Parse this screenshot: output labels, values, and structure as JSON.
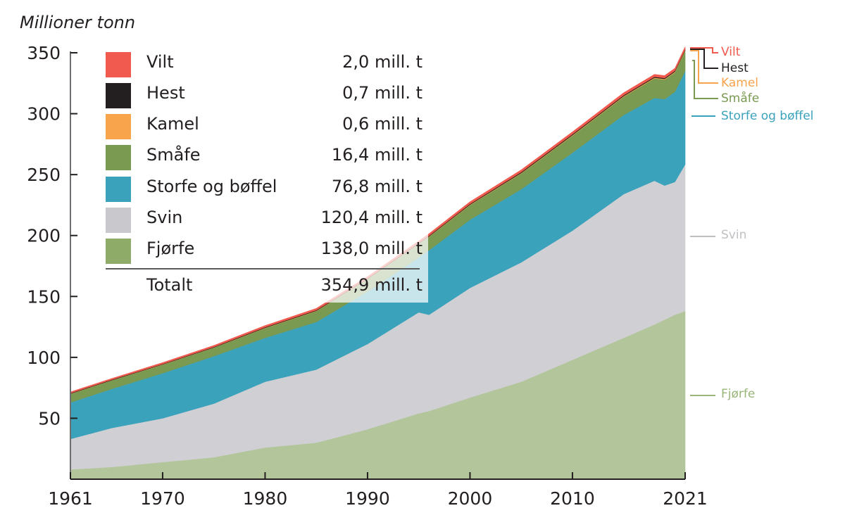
{
  "chart_data": {
    "type": "area",
    "stacked": true,
    "ylabel": "Millioner tonn",
    "xlabel": "",
    "xlim": [
      1961,
      2021
    ],
    "ylim": [
      0,
      350
    ],
    "x_ticks": [
      1961,
      1970,
      1980,
      1990,
      2000,
      2010,
      2021
    ],
    "y_ticks": [
      50,
      100,
      150,
      200,
      250,
      300,
      350
    ],
    "grid": false,
    "legend_position": "top-left",
    "x": [
      1961,
      1965,
      1970,
      1975,
      1980,
      1985,
      1990,
      1995,
      1996,
      2000,
      2005,
      2010,
      2015,
      2018,
      2019,
      2020,
      2021
    ],
    "series": [
      {
        "name": "Fjørfe",
        "color": "#b3c59b",
        "values": [
          8,
          10,
          14,
          18,
          26,
          30,
          41,
          54,
          56,
          67,
          80,
          98,
          116,
          127,
          131,
          135,
          138
        ]
      },
      {
        "name": "Svin",
        "color": "#d0d0d4",
        "values": [
          25,
          32,
          36,
          44,
          54,
          60,
          70,
          83,
          79,
          90,
          98,
          106,
          118,
          118,
          110,
          109,
          120.4
        ]
      },
      {
        "name": "Storfe og bøffel",
        "color": "#3ba2bc",
        "values": [
          30,
          32,
          37,
          39,
          36,
          39,
          43,
          45,
          53,
          56,
          60,
          64,
          65,
          68,
          71,
          74,
          76.8
        ]
      },
      {
        "name": "Småfe",
        "color": "#7a9a52",
        "values": [
          7,
          7,
          7,
          7,
          8,
          9,
          10,
          11,
          11,
          12,
          13,
          14,
          15,
          16,
          16,
          16,
          16.4
        ]
      },
      {
        "name": "Kamel",
        "color": "#f7a44c",
        "values": [
          0.2,
          0.2,
          0.2,
          0.2,
          0.3,
          0.3,
          0.3,
          0.3,
          0.3,
          0.4,
          0.4,
          0.5,
          0.5,
          0.6,
          0.6,
          0.6,
          0.6
        ]
      },
      {
        "name": "Hest",
        "color": "#231f20",
        "values": [
          0.4,
          0.4,
          0.4,
          0.4,
          0.5,
          0.5,
          0.5,
          0.6,
          0.6,
          0.6,
          0.7,
          0.7,
          0.7,
          0.7,
          0.7,
          0.7,
          0.7
        ]
      },
      {
        "name": "Vilt",
        "color": "#f15a4e",
        "values": [
          1.0,
          1.0,
          1.1,
          1.2,
          1.3,
          1.4,
          1.5,
          1.6,
          1.6,
          1.7,
          1.8,
          1.9,
          2.0,
          2.0,
          2.0,
          2.0,
          2.0
        ]
      }
    ],
    "legend": [
      {
        "name": "Vilt",
        "value": "2,0 mill. t",
        "color": "#f15a4e"
      },
      {
        "name": "Hest",
        "value": "0,7 mill. t",
        "color": "#231f20"
      },
      {
        "name": "Kamel",
        "value": "0,6 mill. t",
        "color": "#f7a44c"
      },
      {
        "name": "Småfe",
        "value": "16,4 mill. t",
        "color": "#7a9a52"
      },
      {
        "name": "Storfe og bøffel",
        "value": "76,8 mill. t",
        "color": "#3ba2bc"
      },
      {
        "name": "Svin",
        "value": "120,4 mill. t",
        "color": "#c9c9cd"
      },
      {
        "name": "Fjørfe",
        "value": "138,0 mill. t",
        "color": "#8fab68"
      }
    ],
    "total": {
      "name": "Totalt",
      "value": "354,9 mill. t"
    },
    "end_labels": [
      {
        "name": "Vilt",
        "color": "#f15a4e"
      },
      {
        "name": "Hest",
        "color": "#231f20"
      },
      {
        "name": "Kamel",
        "color": "#f7a44c"
      },
      {
        "name": "Småfe",
        "color": "#7a9a52"
      },
      {
        "name": "Storfe og bøffel",
        "color": "#3ba2bc"
      },
      {
        "name": "Svin",
        "color": "#c0c0c4"
      },
      {
        "name": "Fjørfe",
        "color": "#9ab57a"
      }
    ]
  }
}
